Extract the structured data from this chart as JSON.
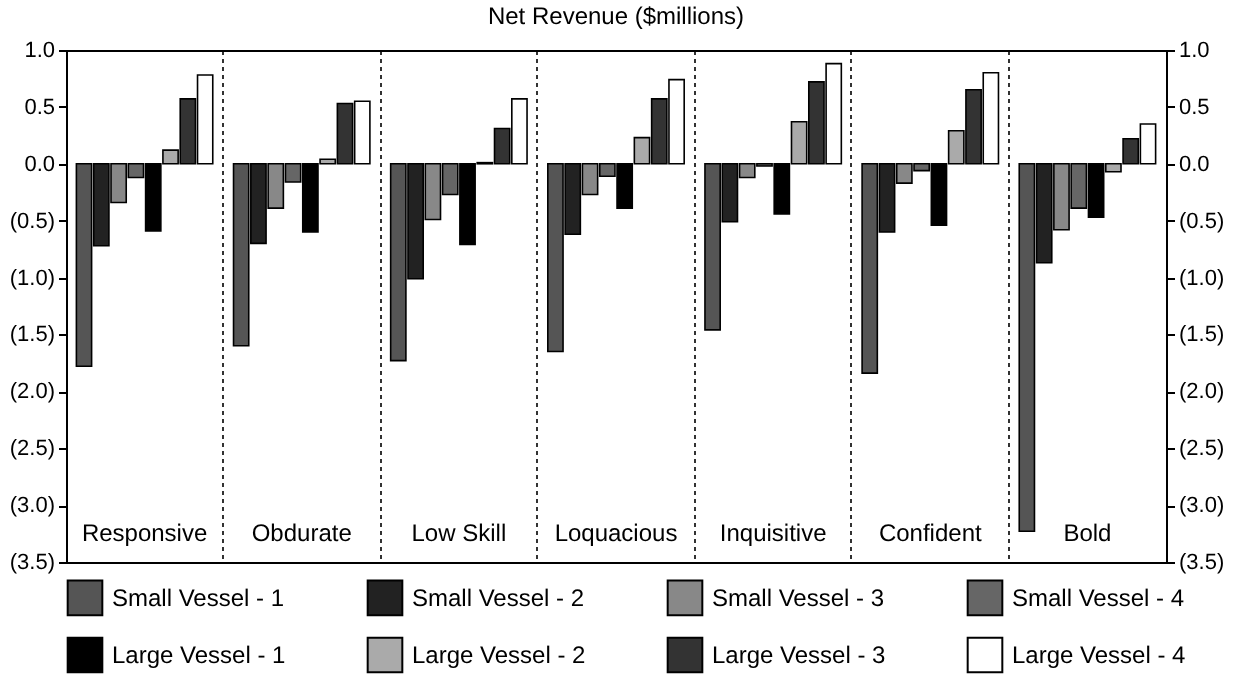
{
  "chart_data": {
    "type": "bar",
    "title": "Net Revenue ($millions)",
    "categories": [
      "Responsive",
      "Obdurate",
      "Low Skill",
      "Loquacious",
      "Inquisitive",
      "Confident",
      "Bold"
    ],
    "series": [
      {
        "name": "Small Vessel - 1",
        "color": "#555555",
        "values": [
          -1.78,
          -1.6,
          -1.73,
          -1.65,
          -1.46,
          -1.84,
          -3.23
        ]
      },
      {
        "name": "Small Vessel - 2",
        "color": "#222222",
        "values": [
          -0.72,
          -0.7,
          -1.01,
          -0.62,
          -0.51,
          -0.6,
          -0.87
        ]
      },
      {
        "name": "Small Vessel - 3",
        "color": "#888888",
        "values": [
          -0.34,
          -0.39,
          -0.49,
          -0.27,
          -0.12,
          -0.17,
          -0.58
        ]
      },
      {
        "name": "Small Vessel - 4",
        "color": "#666666",
        "values": [
          -0.12,
          -0.16,
          -0.27,
          -0.11,
          -0.02,
          -0.06,
          -0.39
        ]
      },
      {
        "name": "Large Vessel - 1",
        "color": "#000000",
        "values": [
          -0.59,
          -0.6,
          -0.71,
          -0.39,
          -0.44,
          -0.54,
          -0.47
        ]
      },
      {
        "name": "Large Vessel - 2",
        "color": "#aaaaaa",
        "values": [
          0.12,
          0.04,
          0.01,
          0.23,
          0.37,
          0.29,
          -0.07
        ]
      },
      {
        "name": "Large Vessel - 3",
        "color": "#333333",
        "values": [
          0.57,
          0.53,
          0.31,
          0.57,
          0.72,
          0.65,
          0.22
        ]
      },
      {
        "name": "Large Vessel - 4",
        "color": "#ffffff",
        "values": [
          0.78,
          0.55,
          0.57,
          0.74,
          0.88,
          0.8,
          0.35
        ]
      }
    ],
    "ylim": [
      -3.5,
      1.0
    ],
    "yticks": [
      {
        "value": -3.5,
        "label": "(3.5)"
      },
      {
        "value": -3.0,
        "label": "(3.0)"
      },
      {
        "value": -2.5,
        "label": "(2.5)"
      },
      {
        "value": -2.0,
        "label": "(2.0)"
      },
      {
        "value": -1.5,
        "label": "(1.5)"
      },
      {
        "value": -1.0,
        "label": "(1.0)"
      },
      {
        "value": -0.5,
        "label": "(0.5)"
      },
      {
        "value": 0,
        "label": "0.0"
      },
      {
        "value": 0.5,
        "label": "0.5"
      },
      {
        "value": 1.0,
        "label": "1.0"
      }
    ],
    "y2lim": [
      -3.5,
      1.0
    ],
    "y2ticks": [
      {
        "value": -3.5,
        "label": "(3.5)"
      },
      {
        "value": -3.0,
        "label": "(3.0)"
      },
      {
        "value": -2.5,
        "label": "(2.5)"
      },
      {
        "value": -2.0,
        "label": "(2.0)"
      },
      {
        "value": -1.5,
        "label": "(1.5)"
      },
      {
        "value": -1.0,
        "label": "(1.0)"
      },
      {
        "value": -0.5,
        "label": "(0.5)"
      },
      {
        "value": 0,
        "label": "0.0"
      },
      {
        "value": 0.5,
        "label": "0.5"
      },
      {
        "value": 1.0,
        "label": "1.0"
      }
    ],
    "grid": "x",
    "legend": "bottom"
  }
}
